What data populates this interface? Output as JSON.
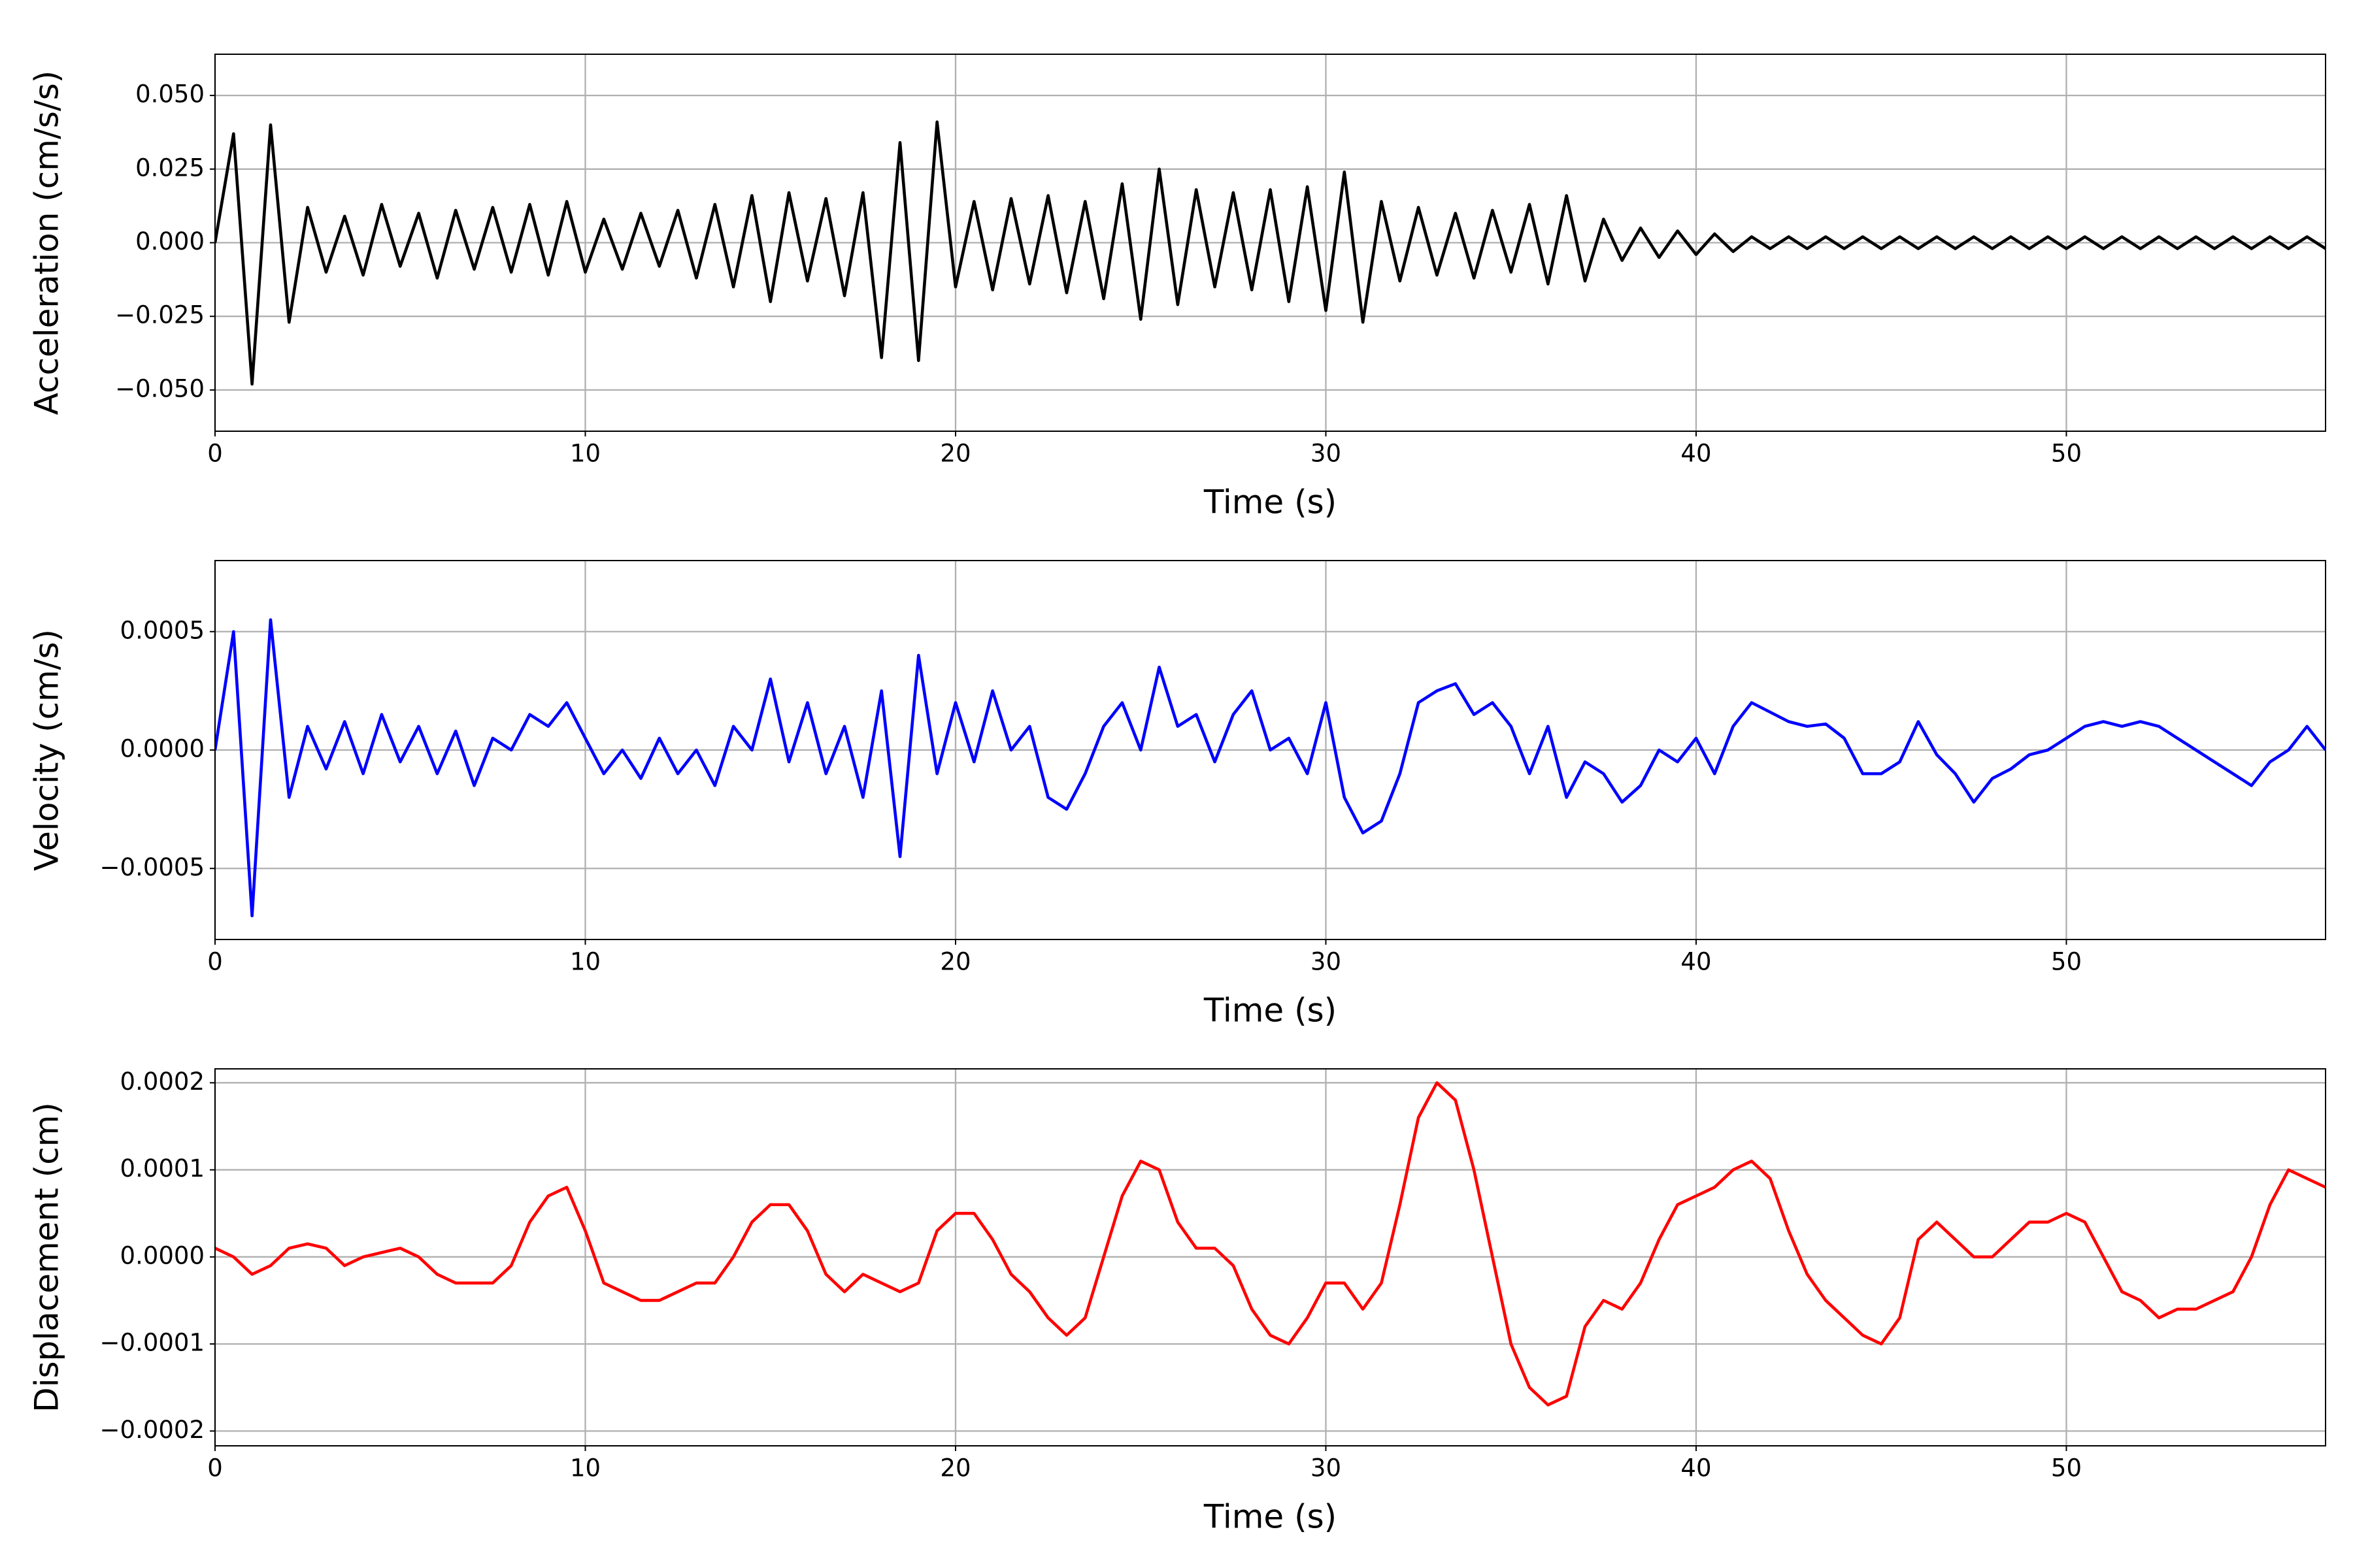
{
  "chart_data": [
    {
      "type": "line",
      "xlabel": "Time (s)",
      "ylabel": "Acceleration (cm/s/s)",
      "grid": true,
      "xlim": [
        0,
        57
      ],
      "xticks": [
        0,
        10,
        20,
        30,
        40,
        50
      ],
      "ylim": [
        -0.064,
        0.064
      ],
      "yticks": [
        {
          "value": -0.05,
          "label": "−0.050"
        },
        {
          "value": -0.025,
          "label": "−0.025"
        },
        {
          "value": 0,
          "label": "0.000"
        },
        {
          "value": 0.025,
          "label": "0.025"
        },
        {
          "value": 0.05,
          "label": "0.050"
        }
      ],
      "x": [
        0,
        0.5,
        1,
        1.5,
        2,
        2.5,
        3,
        3.5,
        4,
        4.5,
        5,
        5.5,
        6,
        6.5,
        7,
        7.5,
        8,
        8.5,
        9,
        9.5,
        10,
        10.5,
        11,
        11.5,
        12,
        12.5,
        13,
        13.5,
        14,
        14.5,
        15,
        15.5,
        16,
        16.5,
        17,
        17.5,
        18,
        18.5,
        19,
        19.5,
        20,
        20.5,
        21,
        21.5,
        22,
        22.5,
        23,
        23.5,
        24,
        24.5,
        25,
        25.5,
        26,
        26.5,
        27,
        27.5,
        28,
        28.5,
        29,
        29.5,
        30,
        30.5,
        31,
        31.5,
        32,
        32.5,
        33,
        33.5,
        34,
        34.5,
        35,
        35.5,
        36,
        36.5,
        37,
        37.5,
        38,
        38.5,
        39,
        39.5,
        40,
        40.5,
        41,
        41.5,
        42,
        42.5,
        43,
        43.5,
        44,
        44.5,
        45,
        45.5,
        46,
        46.5,
        47,
        47.5,
        48,
        48.5,
        49,
        49.5,
        50,
        50.5,
        51,
        51.5,
        52,
        52.5,
        53,
        53.5,
        54,
        54.5,
        55,
        55.5,
        56,
        56.5,
        57
      ],
      "series": [
        {
          "color": "#000000",
          "values": [
            0,
            0.037,
            -0.048,
            0.04,
            -0.027,
            0.012,
            -0.01,
            0.009,
            -0.011,
            0.013,
            -0.008,
            0.01,
            -0.012,
            0.011,
            -0.009,
            0.012,
            -0.01,
            0.013,
            -0.011,
            0.014,
            -0.01,
            0.008,
            -0.009,
            0.01,
            -0.008,
            0.011,
            -0.012,
            0.013,
            -0.015,
            0.016,
            -0.02,
            0.017,
            -0.013,
            0.015,
            -0.018,
            0.017,
            -0.039,
            0.034,
            -0.04,
            0.041,
            -0.015,
            0.014,
            -0.016,
            0.015,
            -0.014,
            0.016,
            -0.017,
            0.014,
            -0.019,
            0.02,
            -0.026,
            0.025,
            -0.021,
            0.018,
            -0.015,
            0.017,
            -0.016,
            0.018,
            -0.02,
            0.019,
            -0.023,
            0.024,
            -0.027,
            0.014,
            -0.013,
            0.012,
            -0.011,
            0.01,
            -0.012,
            0.011,
            -0.01,
            0.013,
            -0.014,
            0.016,
            -0.013,
            0.008,
            -0.006,
            0.005,
            -0.005,
            0.004,
            -0.004,
            0.003,
            -0.003,
            0.002,
            -0.002,
            0.002,
            -0.002,
            0.002,
            -0.002,
            0.002,
            -0.002,
            0.002,
            -0.002,
            0.002,
            -0.002,
            0.002,
            -0.002,
            0.002,
            -0.002,
            0.002,
            -0.002,
            0.002,
            -0.002,
            0.002,
            -0.002,
            0.002,
            -0.002,
            0.002,
            -0.002,
            0.002,
            -0.002,
            0.002,
            -0.002,
            0.002,
            -0.002
          ]
        }
      ]
    },
    {
      "type": "line",
      "xlabel": "Time (s)",
      "ylabel": "Velocity (cm/s)",
      "grid": true,
      "xlim": [
        0,
        57
      ],
      "xticks": [
        0,
        10,
        20,
        30,
        40,
        50
      ],
      "ylim": [
        -0.0008,
        0.0008
      ],
      "yticks": [
        {
          "value": -0.0005,
          "label": "−0.0005"
        },
        {
          "value": 0,
          "label": "0.0000"
        },
        0.0005
      ],
      "x": [
        0,
        0.5,
        1,
        1.5,
        2,
        2.5,
        3,
        3.5,
        4,
        4.5,
        5,
        5.5,
        6,
        6.5,
        7,
        7.5,
        8,
        8.5,
        9,
        9.5,
        10,
        10.5,
        11,
        11.5,
        12,
        12.5,
        13,
        13.5,
        14,
        14.5,
        15,
        15.5,
        16,
        16.5,
        17,
        17.5,
        18,
        18.5,
        19,
        19.5,
        20,
        20.5,
        21,
        21.5,
        22,
        22.5,
        23,
        23.5,
        24,
        24.5,
        25,
        25.5,
        26,
        26.5,
        27,
        27.5,
        28,
        28.5,
        29,
        29.5,
        30,
        30.5,
        31,
        31.5,
        32,
        32.5,
        33,
        33.5,
        34,
        34.5,
        35,
        35.5,
        36,
        36.5,
        37,
        37.5,
        38,
        38.5,
        39,
        39.5,
        40,
        40.5,
        41,
        41.5,
        42,
        42.5,
        43,
        43.5,
        44,
        44.5,
        45,
        45.5,
        46,
        46.5,
        47,
        47.5,
        48,
        48.5,
        49,
        49.5,
        50,
        50.5,
        51,
        51.5,
        52,
        52.5,
        53,
        53.5,
        54,
        54.5,
        55,
        55.5,
        56,
        56.5,
        57
      ],
      "series": [
        {
          "color": "#0000ff",
          "values": [
            0,
            0.0005,
            -0.0007,
            0.00055,
            -0.0002,
            0.0001,
            -8e-05,
            0.00012,
            -0.0001,
            0.00015,
            -5e-05,
            0.0001,
            -0.0001,
            8e-05,
            -0.00015,
            5e-05,
            0,
            0.00015,
            0.0001,
            0.0002,
            5e-05,
            -0.0001,
            0,
            -0.00012,
            5e-05,
            -0.0001,
            0,
            -0.00015,
            0.0001,
            0,
            0.0003,
            -5e-05,
            0.0002,
            -0.0001,
            0.0001,
            -0.0002,
            0.00025,
            -0.00045,
            0.0004,
            -0.0001,
            0.0002,
            -5e-05,
            0.00025,
            0,
            0.0001,
            -0.0002,
            -0.00025,
            -0.0001,
            0.0001,
            0.0002,
            0,
            0.00035,
            0.0001,
            0.00015,
            -5e-05,
            0.00015,
            0.00025,
            0,
            5e-05,
            -0.0001,
            0.0002,
            -0.0002,
            -0.00035,
            -0.0003,
            -0.0001,
            0.0002,
            0.00025,
            0.00028,
            0.00015,
            0.0002,
            0.0001,
            -0.0001,
            0.0001,
            -0.0002,
            -5e-05,
            -0.0001,
            -0.00022,
            -0.00015,
            0,
            -5e-05,
            5e-05,
            -0.0001,
            0.0001,
            0.0002,
            0.00016,
            0.00012,
            0.0001,
            0.00011,
            5e-05,
            -0.0001,
            -0.0001,
            -5e-05,
            0.00012,
            -2e-05,
            -0.0001,
            -0.00022,
            -0.00012,
            -8e-05,
            -2e-05,
            0,
            5e-05,
            0.0001,
            0.00012,
            0.0001,
            0.00012,
            0.0001,
            5e-05,
            0,
            -5e-05,
            -0.0001,
            -0.00015,
            -5e-05,
            0,
            0.0001,
            0
          ]
        }
      ]
    },
    {
      "type": "line",
      "xlabel": "Time (s)",
      "ylabel": "Displacement (cm)",
      "grid": true,
      "xlim": [
        0,
        57
      ],
      "xticks": [
        0,
        10,
        20,
        30,
        40,
        50
      ],
      "ylim": [
        -0.000217,
        0.000216
      ],
      "yticks": [
        {
          "value": -0.0002,
          "label": "−0.0002"
        },
        {
          "value": -0.0001,
          "label": "−0.0001"
        },
        {
          "value": 0,
          "label": "0.0000"
        },
        0.0001,
        0.0002
      ],
      "x": [
        0,
        0.5,
        1,
        1.5,
        2,
        2.5,
        3,
        3.5,
        4,
        4.5,
        5,
        5.5,
        6,
        6.5,
        7,
        7.5,
        8,
        8.5,
        9,
        9.5,
        10,
        10.5,
        11,
        11.5,
        12,
        12.5,
        13,
        13.5,
        14,
        14.5,
        15,
        15.5,
        16,
        16.5,
        17,
        17.5,
        18,
        18.5,
        19,
        19.5,
        20,
        20.5,
        21,
        21.5,
        22,
        22.5,
        23,
        23.5,
        24,
        24.5,
        25,
        25.5,
        26,
        26.5,
        27,
        27.5,
        28,
        28.5,
        29,
        29.5,
        30,
        30.5,
        31,
        31.5,
        32,
        32.5,
        33,
        33.5,
        34,
        34.5,
        35,
        35.5,
        36,
        36.5,
        37,
        37.5,
        38,
        38.5,
        39,
        39.5,
        40,
        40.5,
        41,
        41.5,
        42,
        42.5,
        43,
        43.5,
        44,
        44.5,
        45,
        45.5,
        46,
        46.5,
        47,
        47.5,
        48,
        48.5,
        49,
        49.5,
        50,
        50.5,
        51,
        51.5,
        52,
        52.5,
        53,
        53.5,
        54,
        54.5,
        55,
        55.5,
        56,
        56.5,
        57
      ],
      "series": [
        {
          "color": "#ff0000",
          "values": [
            1e-05,
            0,
            -2e-05,
            -1e-05,
            1e-05,
            1.5e-05,
            1e-05,
            -1e-05,
            0,
            5e-06,
            1e-05,
            0,
            -2e-05,
            -3e-05,
            -3e-05,
            -3e-05,
            -1e-05,
            4e-05,
            7e-05,
            8e-05,
            3e-05,
            -3e-05,
            -4e-05,
            -5e-05,
            -5e-05,
            -4e-05,
            -3e-05,
            -3e-05,
            0,
            4e-05,
            6e-05,
            6e-05,
            3e-05,
            -2e-05,
            -4e-05,
            -2e-05,
            -3e-05,
            -4e-05,
            -3e-05,
            3e-05,
            5e-05,
            5e-05,
            2e-05,
            -2e-05,
            -4e-05,
            -7e-05,
            -9e-05,
            -7e-05,
            0,
            7e-05,
            0.00011,
            0.0001,
            4e-05,
            1e-05,
            1e-05,
            -1e-05,
            -6e-05,
            -9e-05,
            -0.0001,
            -7e-05,
            -3e-05,
            -3e-05,
            -6e-05,
            -3e-05,
            6e-05,
            0.00016,
            0.0002,
            0.00018,
            0.0001,
            0,
            -0.0001,
            -0.00015,
            -0.00017,
            -0.00016,
            -8e-05,
            -5e-05,
            -6e-05,
            -3e-05,
            2e-05,
            6e-05,
            7e-05,
            8e-05,
            0.0001,
            0.00011,
            9e-05,
            3e-05,
            -2e-05,
            -5e-05,
            -7e-05,
            -9e-05,
            -0.0001,
            -7e-05,
            2e-05,
            4e-05,
            2e-05,
            0,
            0,
            2e-05,
            4e-05,
            4e-05,
            5e-05,
            4e-05,
            0,
            -4e-05,
            -5e-05,
            -7e-05,
            -6e-05,
            -6e-05,
            -5e-05,
            -4e-05,
            0,
            6e-05,
            0.0001,
            9e-05,
            8e-05
          ]
        }
      ]
    }
  ]
}
